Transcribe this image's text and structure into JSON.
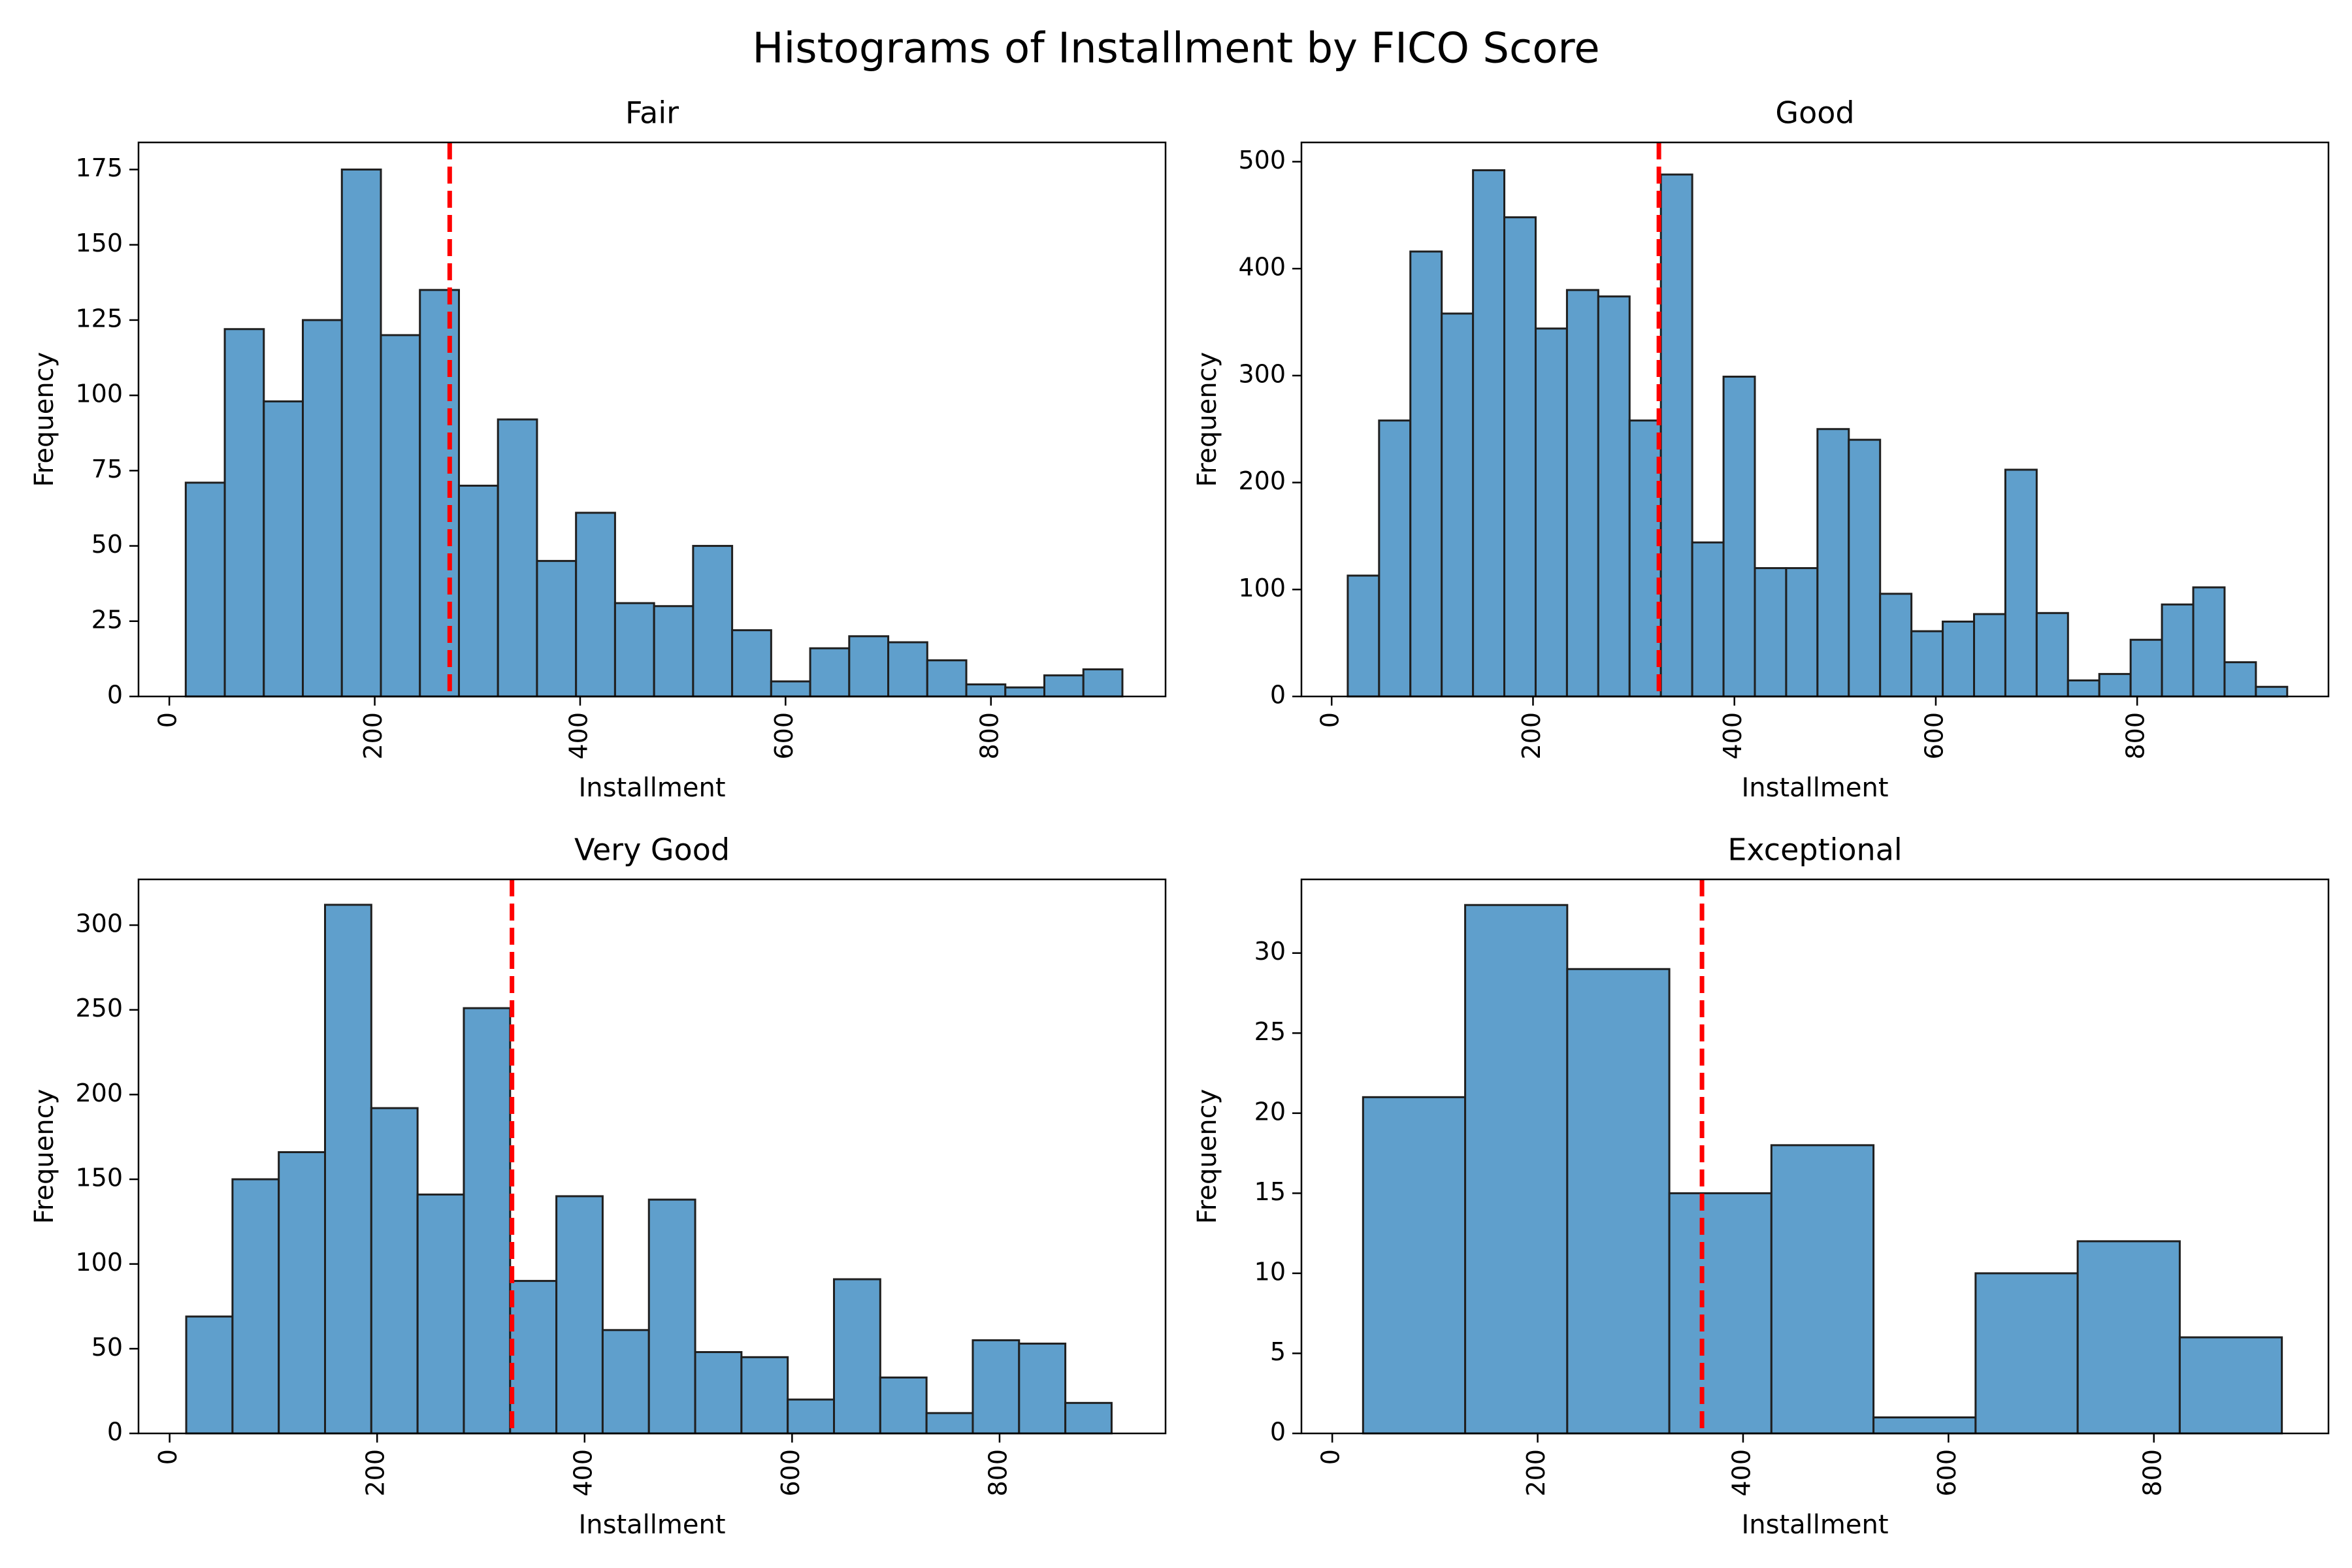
{
  "figure": {
    "title": "Histograms of Installment by FICO Score"
  },
  "style": {
    "bar_fill": "#5f9fcc",
    "bar_edge": "#1f1f1f",
    "mean_line": "#ff0000"
  },
  "chart_data": [
    {
      "type": "bar",
      "title": "Fair",
      "xlabel": "Installment",
      "ylabel": "Frequency",
      "xlim": [
        -30,
        970
      ],
      "ylim": [
        0,
        184
      ],
      "xticks": [
        0,
        200,
        400,
        600,
        800
      ],
      "yticks": [
        0,
        25,
        50,
        75,
        100,
        125,
        150,
        175
      ],
      "xtick_labels": [
        "0",
        "200",
        "400",
        "600",
        "800"
      ],
      "ytick_labels": [
        "0",
        "25",
        "50",
        "75",
        "100",
        "125",
        "150",
        "175"
      ],
      "bin_start": 16,
      "bin_width": 38,
      "values": [
        71,
        122,
        98,
        125,
        175,
        120,
        135,
        70,
        92,
        45,
        61,
        31,
        30,
        50,
        22,
        5,
        16,
        20,
        18,
        12,
        4,
        3,
        7,
        9
      ],
      "mean_line_x": 273,
      "grid": false
    },
    {
      "type": "bar",
      "title": "Good",
      "xlabel": "Installment",
      "ylabel": "Frequency",
      "xlim": [
        -30,
        990
      ],
      "ylim": [
        0,
        518
      ],
      "xticks": [
        0,
        200,
        400,
        600,
        800
      ],
      "yticks": [
        0,
        100,
        200,
        300,
        400,
        500
      ],
      "xtick_labels": [
        "0",
        "200",
        "400",
        "600",
        "800"
      ],
      "ytick_labels": [
        "0",
        "100",
        "200",
        "300",
        "400",
        "500"
      ],
      "bin_start": 16,
      "bin_width": 31.1,
      "values": [
        113,
        258,
        416,
        358,
        492,
        448,
        344,
        380,
        374,
        258,
        488,
        144,
        299,
        120,
        120,
        250,
        240,
        96,
        61,
        70,
        77,
        212,
        78,
        15,
        21,
        53,
        86,
        102,
        32,
        9
      ],
      "mean_line_x": 325,
      "grid": false
    },
    {
      "type": "bar",
      "title": "Very Good",
      "xlabel": "Installment",
      "ylabel": "Frequency",
      "xlim": [
        -30,
        960
      ],
      "ylim": [
        0,
        327
      ],
      "xticks": [
        0,
        200,
        400,
        600,
        800
      ],
      "yticks": [
        0,
        50,
        100,
        150,
        200,
        250,
        300
      ],
      "xtick_labels": [
        "0",
        "200",
        "400",
        "600",
        "800"
      ],
      "ytick_labels": [
        "0",
        "50",
        "100",
        "150",
        "200",
        "250",
        "300"
      ],
      "bin_start": 16,
      "bin_width": 44.6,
      "values": [
        69,
        150,
        166,
        312,
        192,
        141,
        251,
        90,
        140,
        61,
        138,
        48,
        45,
        20,
        91,
        33,
        12,
        55,
        53,
        18
      ],
      "mean_line_x": 330,
      "grid": false
    },
    {
      "type": "bar",
      "title": "Exceptional",
      "xlabel": "Installment",
      "ylabel": "Frequency",
      "xlim": [
        -30,
        970
      ],
      "ylim": [
        0,
        34.6
      ],
      "xticks": [
        0,
        200,
        400,
        600,
        800
      ],
      "yticks": [
        0,
        5,
        10,
        15,
        20,
        25,
        30
      ],
      "xtick_labels": [
        "0",
        "200",
        "400",
        "600",
        "800"
      ],
      "ytick_labels": [
        "0",
        "5",
        "10",
        "15",
        "20",
        "25",
        "30"
      ],
      "bin_start": 30,
      "bin_width": 99.4,
      "values": [
        21,
        33,
        29,
        15,
        18,
        1,
        10,
        12,
        6
      ],
      "mean_line_x": 360,
      "grid": false
    }
  ]
}
